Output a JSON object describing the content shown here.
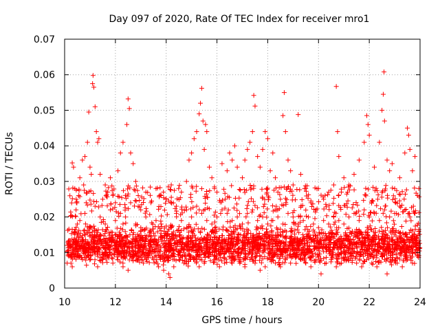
{
  "chart_data": {
    "type": "scatter",
    "title": "Day 097 of 2020, Rate Of TEC Index for receiver mro1",
    "xlabel": "GPS time / hours",
    "ylabel": "ROTI / TECUs",
    "xlim": [
      10,
      24
    ],
    "ylim": [
      0,
      0.07
    ],
    "x_ticks": [
      "10",
      "12",
      "14",
      "16",
      "18",
      "20",
      "22",
      "24"
    ],
    "y_ticks": [
      "0",
      "0.01",
      "0.02",
      "0.03",
      "0.04",
      "0.05",
      "0.06",
      "0.07"
    ],
    "grid": true,
    "marker": "plus",
    "color": "#ff0000",
    "series": [
      {
        "points": [
          [
            10.3,
            0.0352
          ],
          [
            10.35,
            0.034
          ],
          [
            10.4,
            0.028
          ],
          [
            10.45,
            0.022
          ],
          [
            10.5,
            0.018
          ],
          [
            10.55,
            0.026
          ],
          [
            10.6,
            0.031
          ],
          [
            10.7,
            0.036
          ],
          [
            10.75,
            0.029
          ],
          [
            10.8,
            0.037
          ],
          [
            10.85,
            0.024
          ],
          [
            10.9,
            0.041
          ],
          [
            10.95,
            0.0495
          ],
          [
            11.0,
            0.034
          ],
          [
            11.05,
            0.032
          ],
          [
            11.1,
            0.0575
          ],
          [
            11.12,
            0.0598
          ],
          [
            11.15,
            0.0565
          ],
          [
            11.2,
            0.051
          ],
          [
            11.25,
            0.044
          ],
          [
            11.3,
            0.041
          ],
          [
            11.35,
            0.042
          ],
          [
            11.4,
            0.032
          ],
          [
            11.5,
            0.025
          ],
          [
            11.6,
            0.029
          ],
          [
            11.7,
            0.027
          ],
          [
            11.8,
            0.031
          ],
          [
            11.9,
            0.026
          ],
          [
            12.0,
            0.024
          ],
          [
            12.1,
            0.033
          ],
          [
            12.2,
            0.038
          ],
          [
            12.3,
            0.041
          ],
          [
            12.45,
            0.046
          ],
          [
            12.5,
            0.0532
          ],
          [
            12.55,
            0.0505
          ],
          [
            12.6,
            0.038
          ],
          [
            12.7,
            0.035
          ],
          [
            12.8,
            0.03
          ],
          [
            12.9,
            0.026
          ],
          [
            13.0,
            0.022
          ],
          [
            13.2,
            0.027
          ],
          [
            13.4,
            0.024
          ],
          [
            13.6,
            0.028
          ],
          [
            13.8,
            0.026
          ],
          [
            14.0,
            0.025
          ],
          [
            14.2,
            0.029
          ],
          [
            14.4,
            0.023
          ],
          [
            14.6,
            0.027
          ],
          [
            14.8,
            0.03
          ],
          [
            14.9,
            0.036
          ],
          [
            15.0,
            0.038
          ],
          [
            15.1,
            0.042
          ],
          [
            15.2,
            0.044
          ],
          [
            15.3,
            0.049
          ],
          [
            15.35,
            0.052
          ],
          [
            15.4,
            0.0562
          ],
          [
            15.45,
            0.047
          ],
          [
            15.5,
            0.039
          ],
          [
            15.55,
            0.046
          ],
          [
            15.6,
            0.044
          ],
          [
            15.7,
            0.034
          ],
          [
            15.8,
            0.031
          ],
          [
            15.9,
            0.028
          ],
          [
            16.0,
            0.027
          ],
          [
            16.2,
            0.035
          ],
          [
            16.4,
            0.033
          ],
          [
            16.5,
            0.038
          ],
          [
            16.6,
            0.036
          ],
          [
            16.7,
            0.04
          ],
          [
            16.8,
            0.034
          ],
          [
            17.0,
            0.031
          ],
          [
            17.1,
            0.036
          ],
          [
            17.2,
            0.039
          ],
          [
            17.3,
            0.041
          ],
          [
            17.4,
            0.044
          ],
          [
            17.45,
            0.0542
          ],
          [
            17.5,
            0.0512
          ],
          [
            17.6,
            0.037
          ],
          [
            17.7,
            0.034
          ],
          [
            17.8,
            0.039
          ],
          [
            17.9,
            0.044
          ],
          [
            18.0,
            0.042
          ],
          [
            18.1,
            0.033
          ],
          [
            18.2,
            0.038
          ],
          [
            18.3,
            0.031
          ],
          [
            18.4,
            0.027
          ],
          [
            18.5,
            0.025
          ],
          [
            18.6,
            0.0485
          ],
          [
            18.65,
            0.055
          ],
          [
            18.7,
            0.044
          ],
          [
            18.8,
            0.036
          ],
          [
            18.9,
            0.033
          ],
          [
            19.0,
            0.029
          ],
          [
            19.2,
            0.0488
          ],
          [
            19.3,
            0.032
          ],
          [
            19.5,
            0.028
          ],
          [
            19.7,
            0.024
          ],
          [
            19.9,
            0.022
          ],
          [
            20.0,
            0.028
          ],
          [
            20.2,
            0.025
          ],
          [
            20.4,
            0.027
          ],
          [
            20.6,
            0.029
          ],
          [
            20.7,
            0.0567
          ],
          [
            20.75,
            0.044
          ],
          [
            20.8,
            0.037
          ],
          [
            20.9,
            0.027
          ],
          [
            21.0,
            0.031
          ],
          [
            21.2,
            0.029
          ],
          [
            21.4,
            0.032
          ],
          [
            21.6,
            0.036
          ],
          [
            21.8,
            0.041
          ],
          [
            21.9,
            0.0485
          ],
          [
            21.95,
            0.046
          ],
          [
            22.0,
            0.043
          ],
          [
            22.2,
            0.034
          ],
          [
            22.4,
            0.041
          ],
          [
            22.5,
            0.05
          ],
          [
            22.55,
            0.0545
          ],
          [
            22.58,
            0.0608
          ],
          [
            22.6,
            0.047
          ],
          [
            22.7,
            0.036
          ],
          [
            22.8,
            0.033
          ],
          [
            22.9,
            0.035
          ],
          [
            23.0,
            0.028
          ],
          [
            23.2,
            0.031
          ],
          [
            23.4,
            0.038
          ],
          [
            23.5,
            0.045
          ],
          [
            23.55,
            0.043
          ],
          [
            23.6,
            0.039
          ],
          [
            23.7,
            0.033
          ],
          [
            23.8,
            0.037
          ],
          [
            23.9,
            0.026
          ],
          [
            23.95,
            0.028
          ],
          [
            10.2,
            0.012
          ],
          [
            10.4,
            0.015
          ],
          [
            10.6,
            0.019
          ],
          [
            10.8,
            0.021
          ],
          [
            11.0,
            0.017
          ],
          [
            11.2,
            0.023
          ],
          [
            11.4,
            0.02
          ],
          [
            11.6,
            0.018
          ],
          [
            11.8,
            0.022
          ],
          [
            12.0,
            0.019
          ],
          [
            12.2,
            0.021
          ],
          [
            12.4,
            0.02
          ],
          [
            12.6,
            0.024
          ],
          [
            12.8,
            0.018
          ],
          [
            13.0,
            0.017
          ],
          [
            13.2,
            0.02
          ],
          [
            13.4,
            0.016
          ],
          [
            13.6,
            0.019
          ],
          [
            13.8,
            0.018
          ],
          [
            14.0,
            0.015
          ],
          [
            14.2,
            0.017
          ],
          [
            14.4,
            0.021
          ],
          [
            14.6,
            0.019
          ],
          [
            14.8,
            0.022
          ],
          [
            15.0,
            0.02
          ],
          [
            15.2,
            0.023
          ],
          [
            15.4,
            0.021
          ],
          [
            15.6,
            0.019
          ],
          [
            15.8,
            0.018
          ],
          [
            16.0,
            0.02
          ],
          [
            16.2,
            0.022
          ],
          [
            16.4,
            0.021
          ],
          [
            16.6,
            0.019
          ],
          [
            16.8,
            0.02
          ],
          [
            17.0,
            0.018
          ],
          [
            17.2,
            0.021
          ],
          [
            17.4,
            0.022
          ],
          [
            17.6,
            0.019
          ],
          [
            17.8,
            0.02
          ],
          [
            18.0,
            0.018
          ],
          [
            18.2,
            0.019
          ],
          [
            18.4,
            0.02
          ],
          [
            18.6,
            0.018
          ],
          [
            18.8,
            0.021
          ],
          [
            19.0,
            0.02
          ],
          [
            19.2,
            0.018
          ],
          [
            19.4,
            0.019
          ],
          [
            19.6,
            0.02
          ],
          [
            19.8,
            0.018
          ],
          [
            20.0,
            0.017
          ],
          [
            20.2,
            0.019
          ],
          [
            20.4,
            0.018
          ],
          [
            20.6,
            0.02
          ],
          [
            20.8,
            0.019
          ],
          [
            21.0,
            0.018
          ],
          [
            21.2,
            0.02
          ],
          [
            21.4,
            0.021
          ],
          [
            21.6,
            0.019
          ],
          [
            21.8,
            0.022
          ],
          [
            22.0,
            0.02
          ],
          [
            22.2,
            0.021
          ],
          [
            22.4,
            0.019
          ],
          [
            22.6,
            0.022
          ],
          [
            22.8,
            0.02
          ],
          [
            23.0,
            0.021
          ],
          [
            23.2,
            0.023
          ],
          [
            23.4,
            0.022
          ],
          [
            23.6,
            0.02
          ],
          [
            23.8,
            0.021
          ],
          [
            10.1,
            0.007
          ],
          [
            10.3,
            0.006
          ],
          [
            10.5,
            0.009
          ],
          [
            10.7,
            0.008
          ],
          [
            10.9,
            0.011
          ],
          [
            11.1,
            0.01
          ],
          [
            11.3,
            0.006
          ],
          [
            11.5,
            0.008
          ],
          [
            11.7,
            0.009
          ],
          [
            11.9,
            0.007
          ],
          [
            12.1,
            0.008
          ],
          [
            12.3,
            0.006
          ],
          [
            12.5,
            0.005
          ],
          [
            12.7,
            0.009
          ],
          [
            12.9,
            0.008
          ],
          [
            13.1,
            0.007
          ],
          [
            13.3,
            0.009
          ],
          [
            13.5,
            0.008
          ],
          [
            13.7,
            0.006
          ],
          [
            13.9,
            0.005
          ],
          [
            14.1,
            0.004
          ],
          [
            14.15,
            0.003
          ],
          [
            14.3,
            0.006
          ],
          [
            14.5,
            0.008
          ],
          [
            14.7,
            0.007
          ],
          [
            14.9,
            0.009
          ],
          [
            15.1,
            0.008
          ],
          [
            15.3,
            0.006
          ],
          [
            15.5,
            0.007
          ],
          [
            15.7,
            0.009
          ],
          [
            15.9,
            0.008
          ],
          [
            16.1,
            0.006
          ],
          [
            16.3,
            0.007
          ],
          [
            16.5,
            0.009
          ],
          [
            16.7,
            0.008
          ],
          [
            16.9,
            0.007
          ],
          [
            17.1,
            0.006
          ],
          [
            17.3,
            0.008
          ],
          [
            17.5,
            0.007
          ],
          [
            17.7,
            0.005
          ],
          [
            17.9,
            0.006
          ],
          [
            18.1,
            0.008
          ],
          [
            18.3,
            0.007
          ],
          [
            18.5,
            0.006
          ],
          [
            18.7,
            0.008
          ],
          [
            18.9,
            0.007
          ],
          [
            19.1,
            0.009
          ],
          [
            19.3,
            0.008
          ],
          [
            19.5,
            0.007
          ],
          [
            19.7,
            0.006
          ],
          [
            19.9,
            0.008
          ],
          [
            20.1,
            0.004
          ],
          [
            20.3,
            0.007
          ],
          [
            20.5,
            0.008
          ],
          [
            20.7,
            0.006
          ],
          [
            20.9,
            0.007
          ],
          [
            21.1,
            0.008
          ],
          [
            21.3,
            0.009
          ],
          [
            21.5,
            0.007
          ],
          [
            21.7,
            0.006
          ],
          [
            21.9,
            0.008
          ],
          [
            22.1,
            0.007
          ],
          [
            22.3,
            0.006
          ],
          [
            22.5,
            0.009
          ],
          [
            22.7,
            0.004
          ],
          [
            22.9,
            0.008
          ],
          [
            23.1,
            0.007
          ],
          [
            23.3,
            0.006
          ],
          [
            23.5,
            0.008
          ],
          [
            23.7,
            0.007
          ],
          [
            23.9,
            0.009
          ]
        ],
        "density": {
          "description_points_per_hour": 220,
          "core_min": 0.006,
          "core_max": 0.02,
          "core_mode": 0.011
        }
      }
    ]
  }
}
